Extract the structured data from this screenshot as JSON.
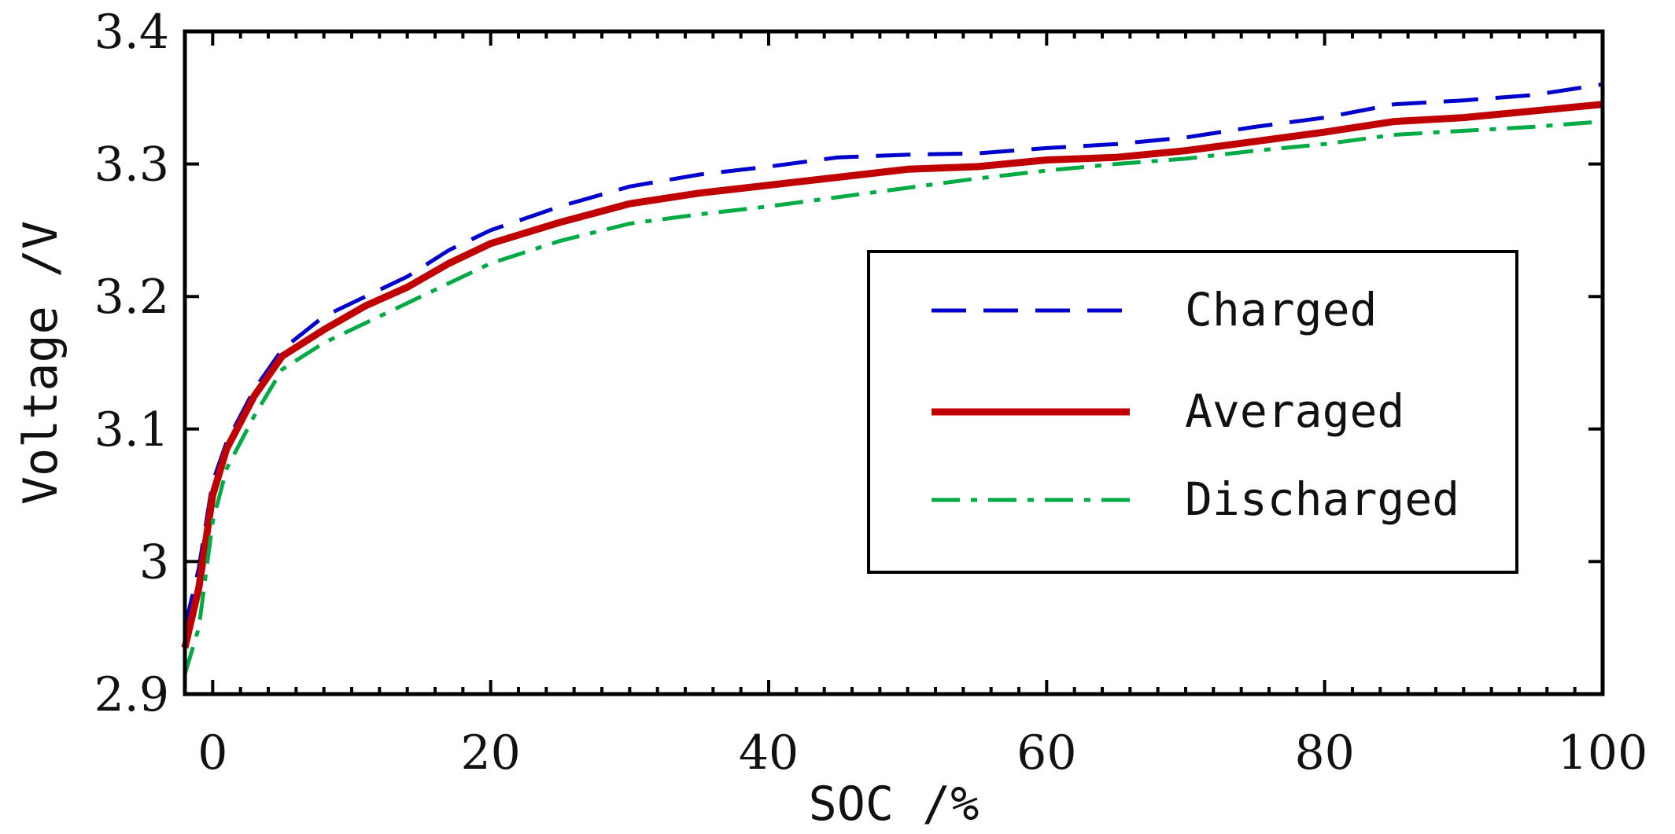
{
  "chart_data": {
    "type": "line",
    "xlabel": "SOC /%",
    "ylabel": "Voltage /V",
    "xlim": [
      -2,
      100
    ],
    "ylim": [
      2.9,
      3.4
    ],
    "xticks": [
      0,
      20,
      40,
      60,
      80,
      100
    ],
    "yticks": [
      2.9,
      3.0,
      3.1,
      3.2,
      3.3,
      3.4
    ],
    "ytick_labels": [
      "2.9",
      "3",
      "3.1",
      "3.2",
      "3.3",
      "3.4"
    ],
    "grid": false,
    "legend_position": "center-right",
    "series": [
      {
        "name": "Charged",
        "color": "#0000cc",
        "style": "dashed",
        "x": [
          -2,
          -1,
          0,
          1,
          3,
          5,
          8,
          11,
          14,
          17,
          20,
          25,
          30,
          35,
          40,
          45,
          50,
          55,
          60,
          65,
          70,
          75,
          80,
          85,
          90,
          95,
          100
        ],
        "y": [
          2.95,
          2.995,
          3.06,
          3.09,
          3.13,
          3.16,
          3.185,
          3.2,
          3.215,
          3.235,
          3.25,
          3.268,
          3.283,
          3.292,
          3.298,
          3.305,
          3.307,
          3.308,
          3.312,
          3.315,
          3.32,
          3.328,
          3.335,
          3.345,
          3.348,
          3.352,
          3.36
        ]
      },
      {
        "name": "Averaged",
        "color": "#c00000",
        "style": "solid",
        "x": [
          -2,
          -1,
          0,
          1,
          3,
          5,
          8,
          11,
          14,
          17,
          20,
          25,
          30,
          35,
          40,
          45,
          50,
          55,
          60,
          65,
          70,
          75,
          80,
          85,
          90,
          95,
          100
        ],
        "y": [
          2.935,
          2.98,
          3.05,
          3.085,
          3.125,
          3.155,
          3.175,
          3.193,
          3.207,
          3.225,
          3.24,
          3.256,
          3.27,
          3.278,
          3.284,
          3.29,
          3.296,
          3.298,
          3.303,
          3.305,
          3.31,
          3.317,
          3.324,
          3.332,
          3.335,
          3.34,
          3.345
        ]
      },
      {
        "name": "Discharged",
        "color": "#00aa44",
        "style": "dashdot",
        "x": [
          -2,
          -1,
          0,
          1,
          3,
          5,
          8,
          11,
          14,
          17,
          20,
          25,
          30,
          35,
          40,
          45,
          50,
          55,
          60,
          65,
          70,
          75,
          80,
          85,
          90,
          95,
          100
        ],
        "y": [
          2.915,
          2.95,
          3.03,
          3.07,
          3.11,
          3.145,
          3.165,
          3.18,
          3.195,
          3.21,
          3.225,
          3.242,
          3.255,
          3.262,
          3.268,
          3.275,
          3.282,
          3.289,
          3.295,
          3.3,
          3.304,
          3.31,
          3.315,
          3.322,
          3.325,
          3.328,
          3.332
        ]
      }
    ]
  }
}
